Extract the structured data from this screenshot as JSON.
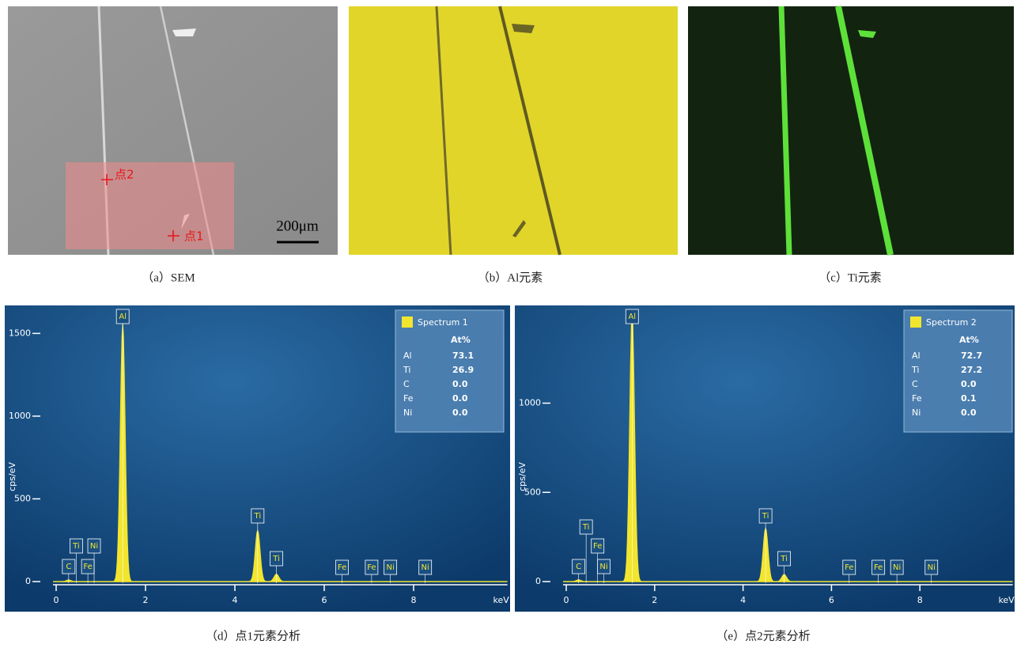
{
  "panels": [
    {
      "caption": "（a）SEM",
      "annotations": [
        "点2",
        "点1"
      ],
      "scale_bar": "200μm"
    },
    {
      "caption": "（b）Al元素"
    },
    {
      "caption": "（c）Ti元素"
    }
  ],
  "chart_data": [
    {
      "type": "spectrum",
      "caption": "（d）点1元素分析",
      "y_label": "cps/eV",
      "x_label": "keV",
      "color": "#f2e52e",
      "xlim": [
        0,
        10.1
      ],
      "xticks": [
        0,
        2,
        4,
        6,
        8
      ],
      "ylim": [
        0,
        1650
      ],
      "yticks": [
        0,
        500,
        1000,
        1500
      ],
      "peaks": {
        "x": [
          0.28,
          1.49,
          4.51,
          4.93
        ],
        "values": [
          10,
          1560,
          310,
          45
        ]
      },
      "peak_labels": {
        "labels": [
          "C",
          "Ti",
          "Fe",
          "Ni",
          "Al",
          "Ti",
          "Ti",
          "Fe",
          "Fe",
          "Ni",
          "Ni"
        ],
        "x": [
          0.28,
          0.45,
          0.71,
          0.85,
          1.49,
          4.51,
          4.93,
          6.4,
          7.06,
          7.48,
          8.26
        ]
      },
      "legend": {
        "title": "Spectrum 1",
        "header": "At%",
        "elements": [
          "Al",
          "Ti",
          "C",
          "Fe",
          "Ni"
        ],
        "element_colors": [
          "#ffffff",
          "#ffffff",
          "#ffffff",
          "#e8362a",
          "#e8362a"
        ],
        "values": [
          73.1,
          26.9,
          0,
          0,
          0
        ],
        "value_labels": [
          "73.1",
          "26.9",
          "0.0",
          "0.0",
          "0.0"
        ]
      }
    },
    {
      "type": "spectrum",
      "caption": "（e）点2元素分析",
      "y_label": "cps/eV",
      "x_label": "keV",
      "color": "#f2e52e",
      "xlim": [
        0,
        10.1
      ],
      "xticks": [
        0,
        2,
        4,
        6,
        8
      ],
      "ylim": [
        0,
        1530
      ],
      "yticks": [
        0,
        500,
        1000
      ],
      "peaks": {
        "x": [
          0.28,
          1.49,
          4.51,
          4.93
        ],
        "values": [
          10,
          1510,
          300,
          40
        ]
      },
      "peak_labels": {
        "labels": [
          "C",
          "Ti",
          "Fe",
          "Ni",
          "Al",
          "Ti",
          "Ti",
          "Fe",
          "Fe",
          "Ni",
          "Ni"
        ],
        "x": [
          0.28,
          0.45,
          0.71,
          0.85,
          1.49,
          4.51,
          4.93,
          6.4,
          7.06,
          7.48,
          8.26
        ]
      },
      "legend": {
        "title": "Spectrum 2",
        "header": "At%",
        "elements": [
          "Al",
          "Ti",
          "C",
          "Fe",
          "Ni"
        ],
        "element_colors": [
          "#ffffff",
          "#ffffff",
          "#e8362a",
          "#e8362a",
          "#e8362a"
        ],
        "values": [
          72.7,
          27.2,
          0,
          0.1,
          0
        ],
        "value_labels": [
          "72.7",
          "27.2",
          "0.0",
          "0.1",
          "0.0"
        ]
      }
    }
  ]
}
